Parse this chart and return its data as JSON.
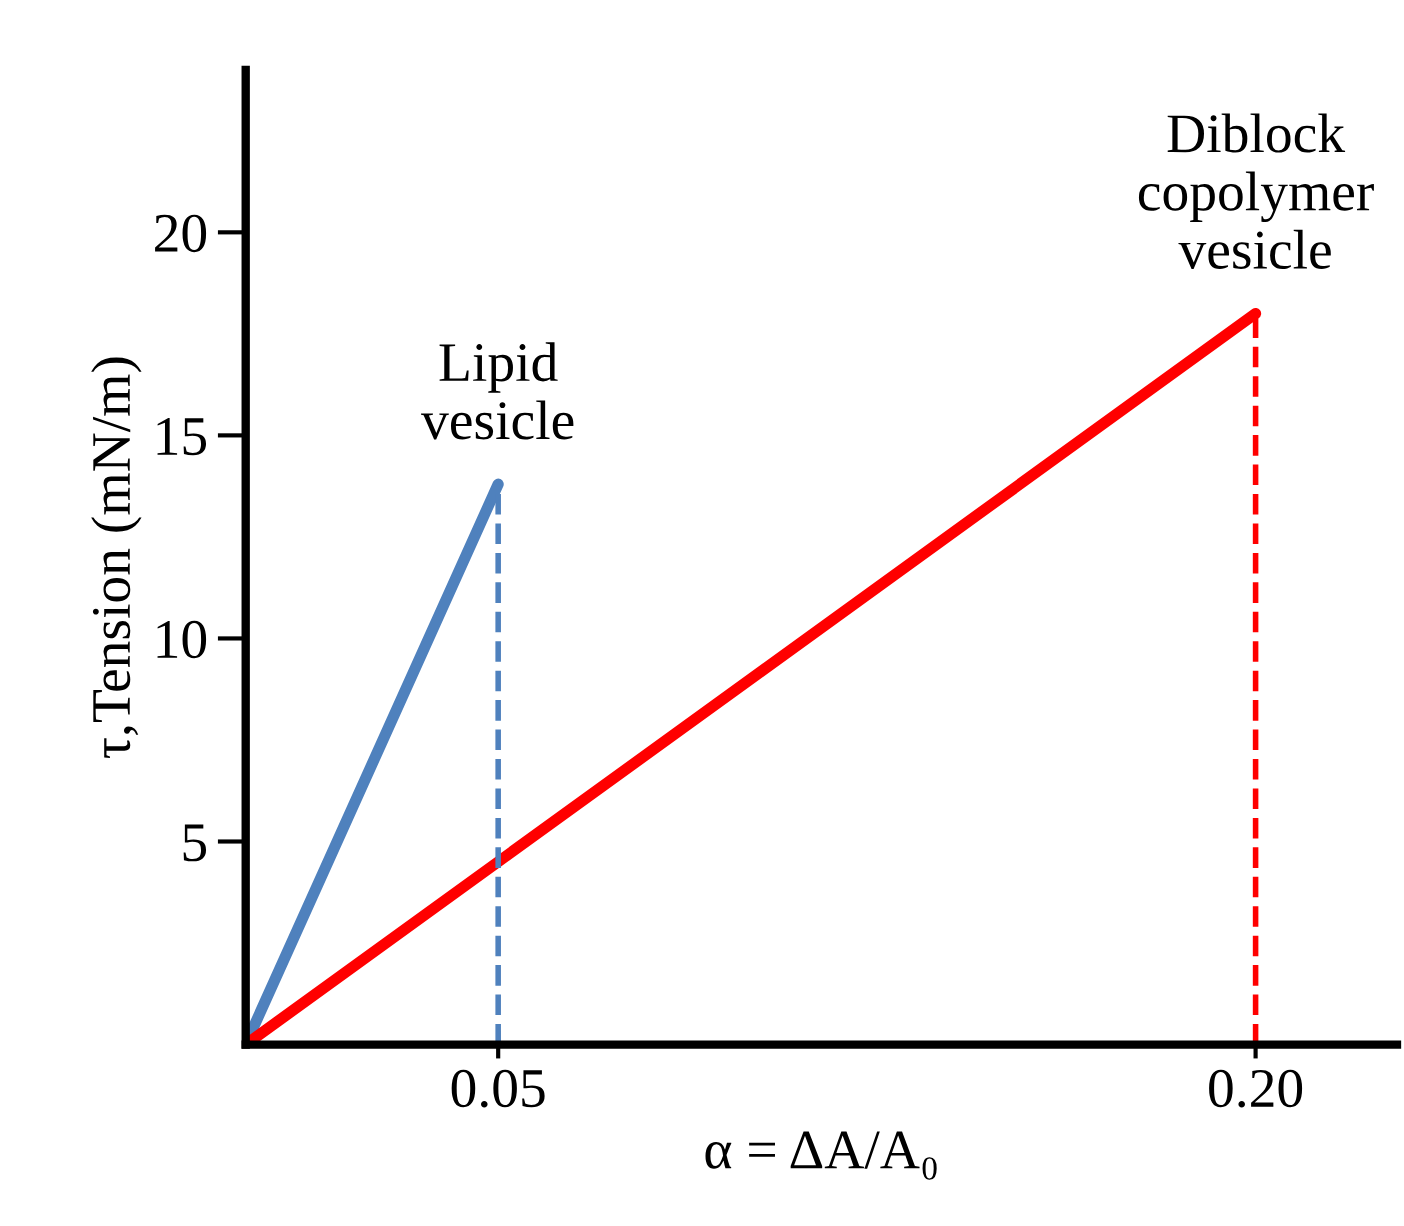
{
  "chart_data": {
    "type": "line",
    "xlabel": "α = ΔA/A₀",
    "ylabel": "τ,Tension (mN/m)",
    "xlim": [
      0,
      0.228
    ],
    "xticks": [
      0.05,
      {
        "value": 0.2,
        "label": "0.20"
      }
    ],
    "ylim": [
      0,
      24
    ],
    "yticks": [
      5,
      10,
      15,
      20
    ],
    "series": [
      {
        "color": "#4f81bd",
        "x": [
          0,
          0.05
        ],
        "values": [
          0,
          13.8
        ],
        "line_style": "solid"
      },
      {
        "color": "#ff0000",
        "x": [
          0,
          0.2
        ],
        "values": [
          0,
          18
        ],
        "line_style": "solid"
      },
      {
        "color": "#4f81bd",
        "x": [
          0.05,
          0.05
        ],
        "values": [
          0,
          13.8
        ],
        "line_style": "dashed"
      },
      {
        "color": "#ff0000",
        "x": [
          0.2,
          0.2
        ],
        "values": [
          0,
          18
        ],
        "line_style": "dashed"
      }
    ],
    "annotations": [
      {
        "text": "Lipid\nvesicle",
        "x": 0.05,
        "y": 13.8
      },
      {
        "text": "Diblock\ncopolymer\nvesicle",
        "x": 0.2,
        "y": 18
      }
    ],
    "grid": false,
    "legend": false,
    "marker": "none"
  }
}
